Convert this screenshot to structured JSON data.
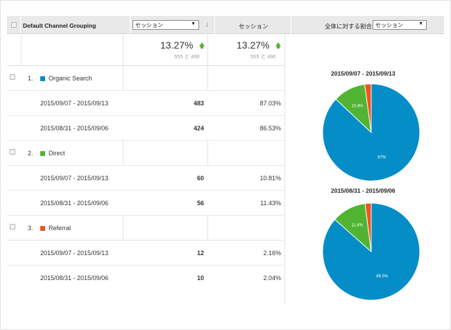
{
  "header": {
    "dimension_label": "Default Channel Grouping",
    "metric_select_value": "セッション",
    "sort_icon": "arrow-down-icon",
    "metric2_label": "セッション",
    "contribution_label": "全体に対する割合:",
    "contribution_select_value": "セッション"
  },
  "totals": {
    "col1_pct": "13.27%",
    "col1_sub": "555 と 490",
    "col2_pct": "13.27%",
    "col2_sub": "555 と 490"
  },
  "colors": {
    "organic": "#058dc7",
    "direct": "#50b432",
    "referral": "#ed561b",
    "up_arrow": "#50b432"
  },
  "groups": [
    {
      "index": "1.",
      "name": "Organic Search",
      "color": "#058dc7",
      "rows": [
        {
          "range": "2015/09/07 - 2015/09/13",
          "sessions": "483",
          "pct": "87.03%"
        },
        {
          "range": "2015/08/31 - 2015/09/06",
          "sessions": "424",
          "pct": "86.53%"
        }
      ]
    },
    {
      "index": "2.",
      "name": "Direct",
      "color": "#50b432",
      "rows": [
        {
          "range": "2015/09/07 - 2015/09/13",
          "sessions": "60",
          "pct": "10.81%"
        },
        {
          "range": "2015/08/31 - 2015/09/06",
          "sessions": "56",
          "pct": "11.43%"
        }
      ]
    },
    {
      "index": "3.",
      "name": "Referral",
      "color": "#ed561b",
      "rows": [
        {
          "range": "2015/09/07 - 2015/09/13",
          "sessions": "12",
          "pct": "2.16%"
        },
        {
          "range": "2015/08/31 - 2015/09/06",
          "sessions": "10",
          "pct": "2.04%"
        }
      ]
    }
  ],
  "chart_data": [
    {
      "type": "pie",
      "title": "2015/09/07 - 2015/09/13",
      "categories": [
        "Organic Search",
        "Direct",
        "Referral"
      ],
      "values": [
        87.03,
        10.81,
        2.16
      ],
      "labels": [
        "87%",
        "10.8%",
        ""
      ],
      "colors": [
        "#058dc7",
        "#50b432",
        "#ed561b"
      ]
    },
    {
      "type": "pie",
      "title": "2015/08/31 - 2015/09/06",
      "categories": [
        "Organic Search",
        "Direct",
        "Referral"
      ],
      "values": [
        86.53,
        11.43,
        2.04
      ],
      "labels": [
        "86.5%",
        "11.4%",
        ""
      ],
      "colors": [
        "#058dc7",
        "#50b432",
        "#ed561b"
      ]
    }
  ]
}
